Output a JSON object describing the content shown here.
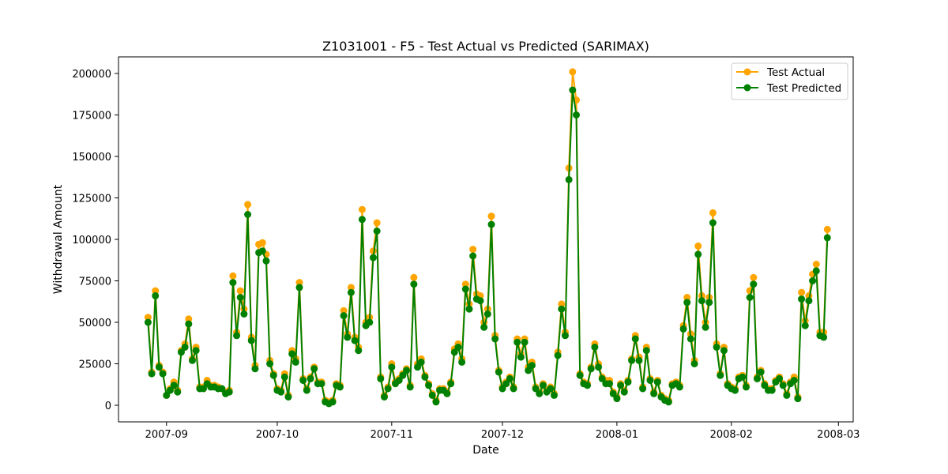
{
  "chart_data": {
    "type": "line",
    "title": "Z1031001 - F5 - Test Actual vs Predicted (SARIMAX)",
    "xlabel": "Date",
    "ylabel": "Withdrawal Amount",
    "xlim": [
      "2007-08-19",
      "2008-03-05"
    ],
    "ylim": [
      -10000,
      210000
    ],
    "x_ticks": [
      "2007-09-01",
      "2007-10-01",
      "2007-11-01",
      "2007-12-01",
      "2008-01-01",
      "2008-02-01",
      "2008-03-01"
    ],
    "x_tick_labels": [
      "2007-09",
      "2007-10",
      "2007-11",
      "2007-12",
      "2008-01",
      "2008-02",
      "2008-03"
    ],
    "y_ticks": [
      0,
      25000,
      50000,
      75000,
      100000,
      125000,
      150000,
      175000,
      200000
    ],
    "y_tick_labels": [
      "0",
      "25000",
      "50000",
      "75000",
      "100000",
      "125000",
      "150000",
      "175000",
      "200000"
    ],
    "grid": false,
    "legend_position": "top-right",
    "start_date": "2007-08-27",
    "series": [
      {
        "name": "Test Actual",
        "color": "#ffa500",
        "marker": "circle",
        "values": [
          53000,
          20000,
          69000,
          24000,
          20000,
          6000,
          10000,
          14000,
          9000,
          33000,
          37000,
          52000,
          28000,
          35000,
          11000,
          11000,
          15000,
          12000,
          12000,
          11000,
          10000,
          8000,
          9000,
          78000,
          44000,
          69000,
          58000,
          121000,
          41000,
          24000,
          97000,
          98000,
          91000,
          27000,
          19000,
          10000,
          9000,
          19000,
          6000,
          33000,
          28000,
          74000,
          16000,
          10000,
          17000,
          23000,
          14000,
          14000,
          3000,
          2000,
          3000,
          13000,
          12000,
          57000,
          43000,
          71000,
          41000,
          35000,
          118000,
          50000,
          53000,
          93000,
          110000,
          17000,
          6000,
          11000,
          25000,
          14000,
          16000,
          19000,
          22000,
          12000,
          77000,
          25000,
          28000,
          18000,
          13000,
          7000,
          3000,
          10000,
          10000,
          8000,
          14000,
          34000,
          37000,
          28000,
          73000,
          61000,
          94000,
          67000,
          66000,
          50000,
          58000,
          114000,
          42000,
          21000,
          11000,
          14000,
          17000,
          11000,
          40000,
          31000,
          40000,
          23000,
          26000,
          11000,
          8000,
          13000,
          9000,
          11000,
          7000,
          32000,
          61000,
          44000,
          143000,
          201000,
          184000,
          19000,
          14000,
          13000,
          23000,
          37000,
          25000,
          17000,
          15000,
          15000,
          8000,
          5000,
          13000,
          9000,
          15000,
          28000,
          42000,
          29000,
          11000,
          35000,
          16000,
          8000,
          15000,
          6000,
          4000,
          3000,
          13000,
          14000,
          12000,
          48000,
          65000,
          43000,
          27000,
          96000,
          66000,
          50000,
          65000,
          116000,
          37000,
          19000,
          35000,
          13000,
          11000,
          10000,
          17000,
          18000,
          12000,
          69000,
          77000,
          17000,
          21000,
          13000,
          10000,
          10000,
          15000,
          17000,
          13000,
          7000,
          14000,
          17000,
          5000,
          68000,
          51000,
          66000,
          79000,
          85000,
          44000,
          44000,
          106000
        ]
      },
      {
        "name": "Test Predicted",
        "color": "#008000",
        "marker": "circle",
        "values": [
          50000,
          19000,
          66000,
          23000,
          19000,
          6000,
          9000,
          12000,
          8000,
          32000,
          35000,
          49000,
          27000,
          33000,
          10000,
          10000,
          13000,
          11000,
          11000,
          10000,
          10000,
          7000,
          8000,
          74000,
          42000,
          65000,
          55000,
          115000,
          39000,
          22000,
          92000,
          93000,
          87000,
          25000,
          18000,
          9000,
          8000,
          17000,
          5000,
          31000,
          26000,
          71000,
          15000,
          9000,
          16000,
          22000,
          13000,
          13000,
          2000,
          1000,
          2000,
          12000,
          11000,
          54000,
          41000,
          68000,
          39000,
          33000,
          112000,
          48000,
          50000,
          89000,
          105000,
          16000,
          5000,
          10000,
          23000,
          13000,
          15000,
          18000,
          21000,
          11000,
          73000,
          23000,
          26000,
          17000,
          12000,
          6000,
          2000,
          9000,
          9000,
          7000,
          13000,
          32000,
          35000,
          26000,
          70000,
          58000,
          90000,
          64000,
          63000,
          47000,
          55000,
          109000,
          40000,
          20000,
          10000,
          13000,
          16000,
          10000,
          38000,
          29000,
          38000,
          21000,
          24000,
          10000,
          7000,
          12000,
          8000,
          10000,
          6000,
          30000,
          58000,
          42000,
          136000,
          190000,
          175000,
          18000,
          13000,
          12000,
          22000,
          35000,
          23000,
          16000,
          13000,
          13000,
          7000,
          4000,
          12000,
          8000,
          14000,
          27000,
          40000,
          27000,
          10000,
          33000,
          15000,
          7000,
          14000,
          5000,
          3000,
          2000,
          12000,
          13000,
          11000,
          46000,
          62000,
          40000,
          25000,
          91000,
          63000,
          47000,
          62000,
          110000,
          35000,
          18000,
          33000,
          12000,
          10000,
          9000,
          16000,
          17000,
          11000,
          65000,
          73000,
          16000,
          20000,
          12000,
          9000,
          9000,
          14000,
          16000,
          12000,
          6000,
          13000,
          15000,
          4000,
          64000,
          48000,
          63000,
          75000,
          81000,
          42000,
          41000,
          101000
        ]
      }
    ]
  }
}
